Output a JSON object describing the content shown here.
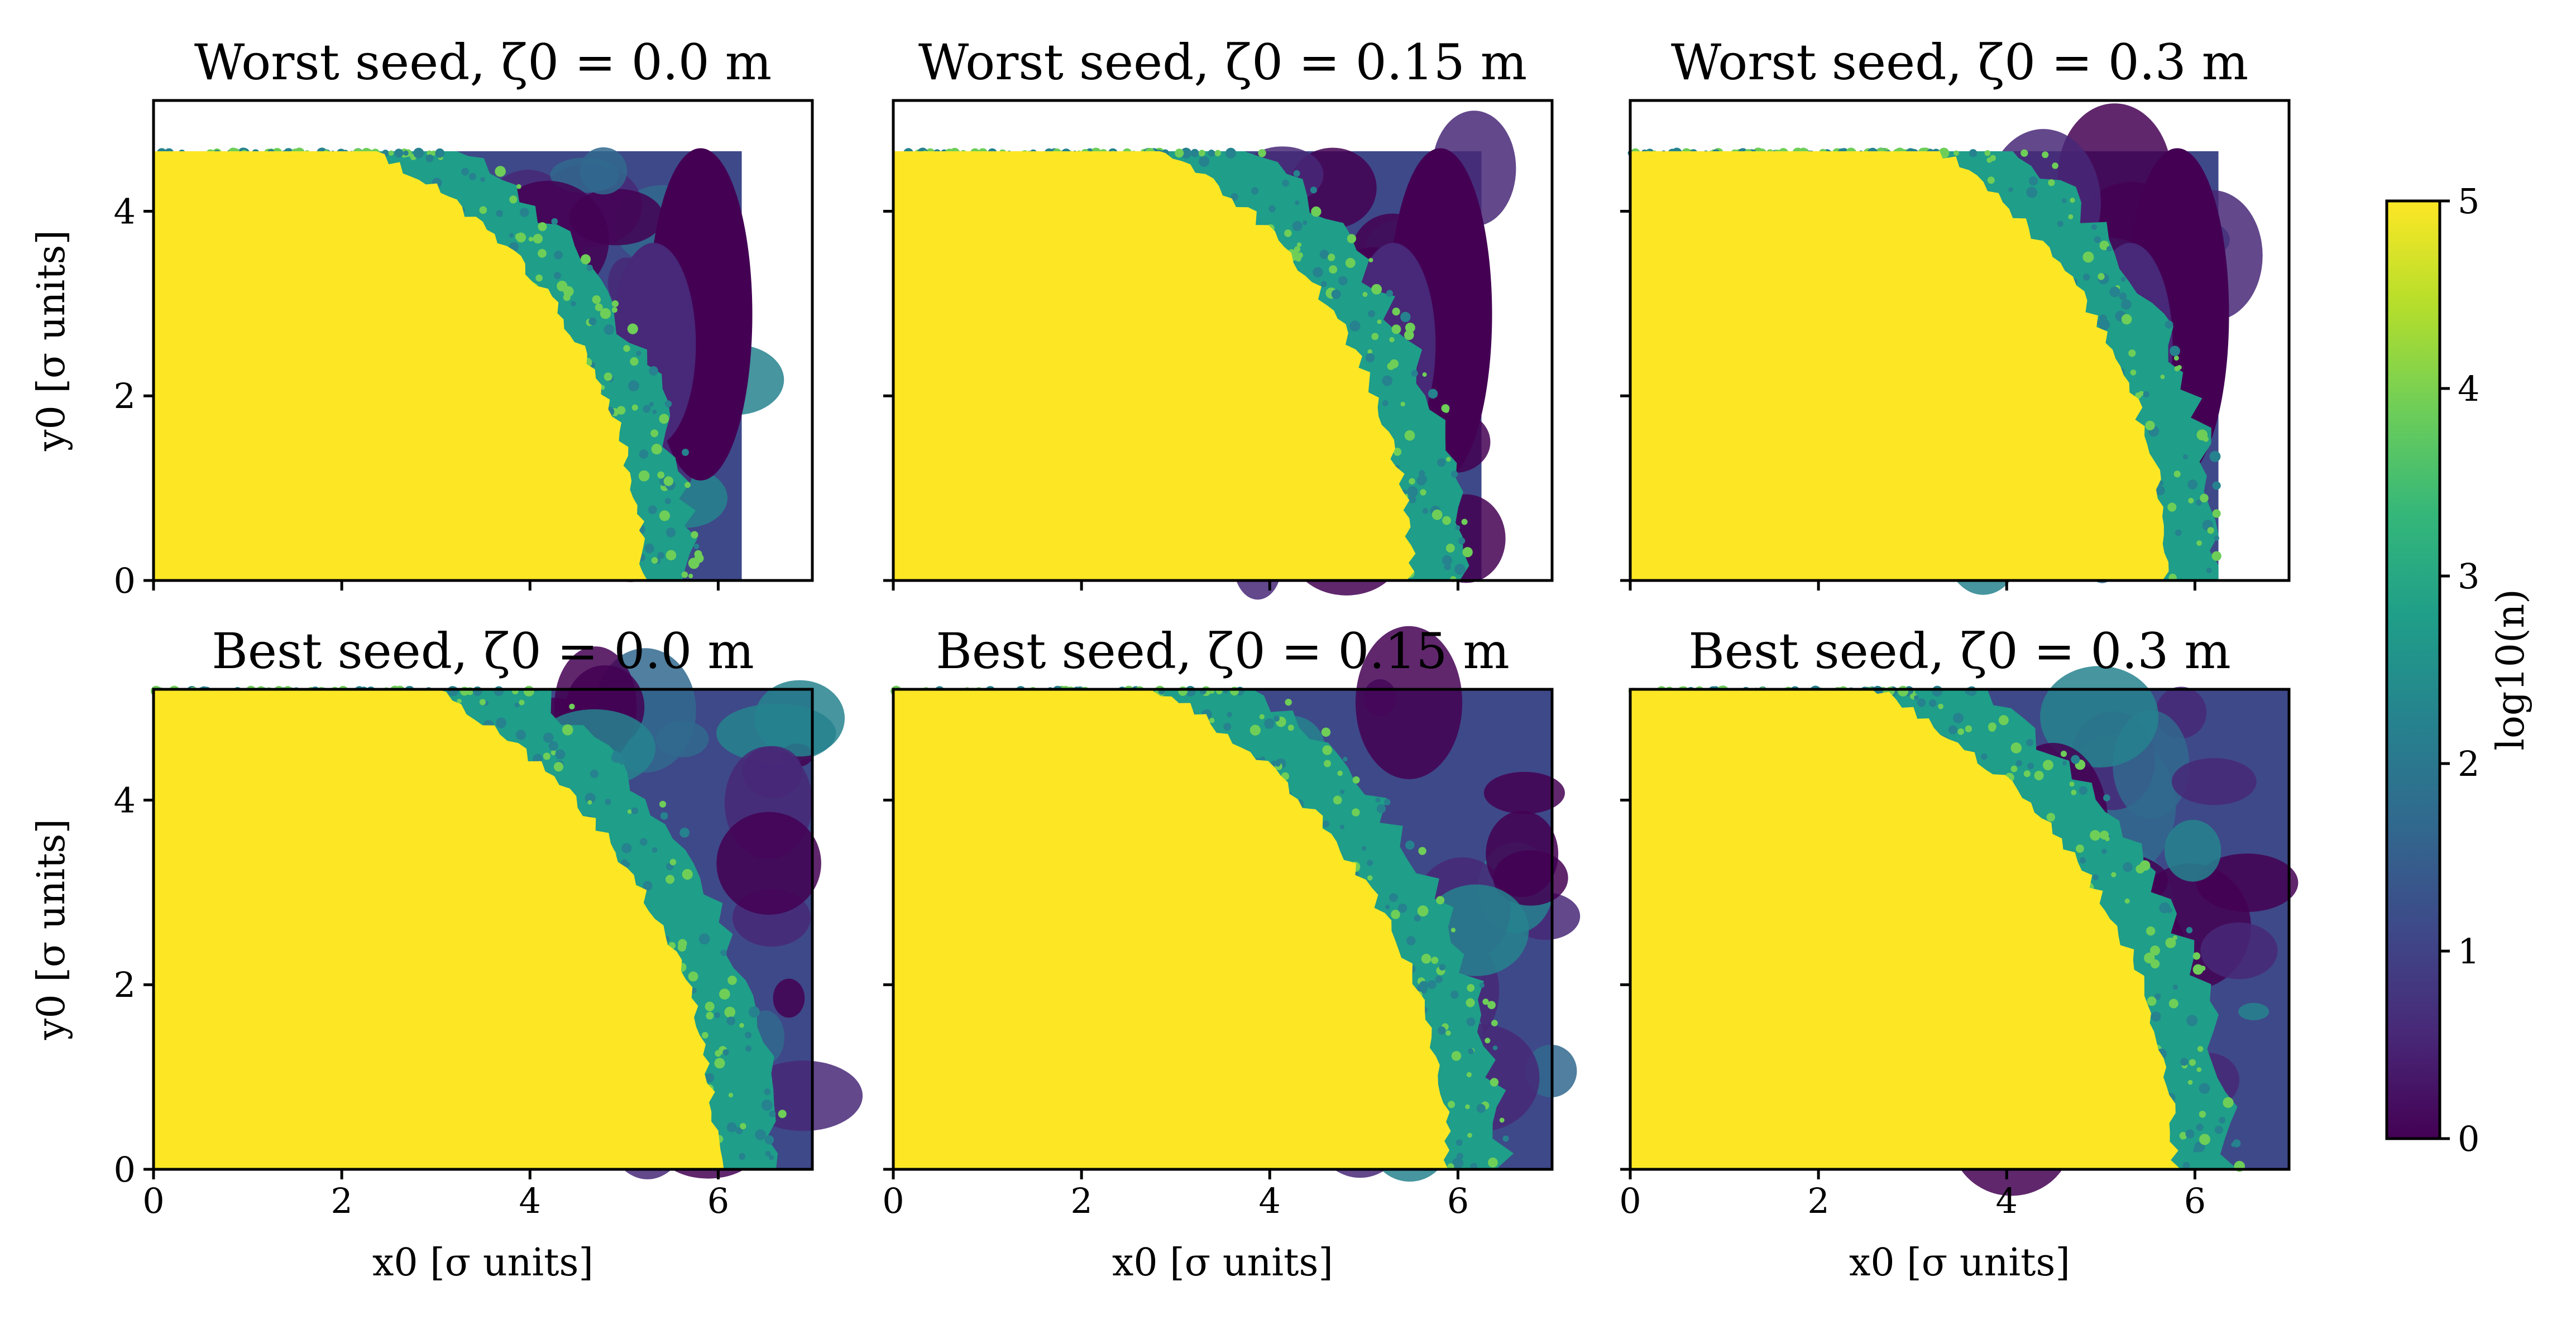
{
  "chart_data": {
    "type": "heatmap",
    "colormap": "viridis",
    "colors": {
      "viridis": [
        "#440154",
        "#482878",
        "#3e4989",
        "#31688e",
        "#26828e",
        "#1f9e89",
        "#35b779",
        "#6ece58",
        "#b5de2b",
        "#fde725"
      ]
    },
    "x_ticks": [
      "0",
      "2",
      "4",
      "6"
    ],
    "y_ticks": [
      "0",
      "2",
      "4"
    ],
    "xlim": [
      0,
      7.0
    ],
    "ylim": [
      0,
      5.2
    ],
    "colorbar": {
      "label": "log10(n)",
      "ticks": [
        "0",
        "1",
        "2",
        "3",
        "4",
        "5"
      ],
      "range": [
        0,
        5
      ]
    },
    "panels": [
      {
        "row": 0,
        "col": 0,
        "title": "Worst seed, ζ0 = 0.0 m",
        "xlabel": "",
        "ylabel": "y0 [σ units]",
        "data_extent": {
          "xmax": 6.25,
          "ymax": 4.65
        }
      },
      {
        "row": 0,
        "col": 1,
        "title": "Worst seed, ζ0 = 0.15 m",
        "xlabel": "",
        "ylabel": "",
        "data_extent": {
          "xmax": 6.25,
          "ymax": 4.65
        }
      },
      {
        "row": 0,
        "col": 2,
        "title": "Worst seed, ζ0 = 0.3 m",
        "xlabel": "",
        "ylabel": "",
        "data_extent": {
          "xmax": 6.25,
          "ymax": 4.65
        }
      },
      {
        "row": 1,
        "col": 0,
        "title": "Best seed, ζ0 = 0.0 m",
        "xlabel": "x0 [σ units]",
        "ylabel": "y0 [σ units]",
        "data_extent": {
          "xmax": 7.0,
          "ymax": 5.2
        }
      },
      {
        "row": 1,
        "col": 1,
        "title": "Best seed, ζ0 = 0.15 m",
        "xlabel": "x0 [σ units]",
        "ylabel": "",
        "data_extent": {
          "xmax": 7.0,
          "ymax": 5.2
        }
      },
      {
        "row": 1,
        "col": 2,
        "title": "Best seed, ζ0 = 0.3 m",
        "xlabel": "x0 [σ units]",
        "ylabel": "",
        "data_extent": {
          "xmax": 7.0,
          "ymax": 5.2
        }
      }
    ],
    "stable_region_radius": [
      5.2,
      5.5,
      5.7,
      6.0,
      5.9,
      5.8
    ]
  }
}
